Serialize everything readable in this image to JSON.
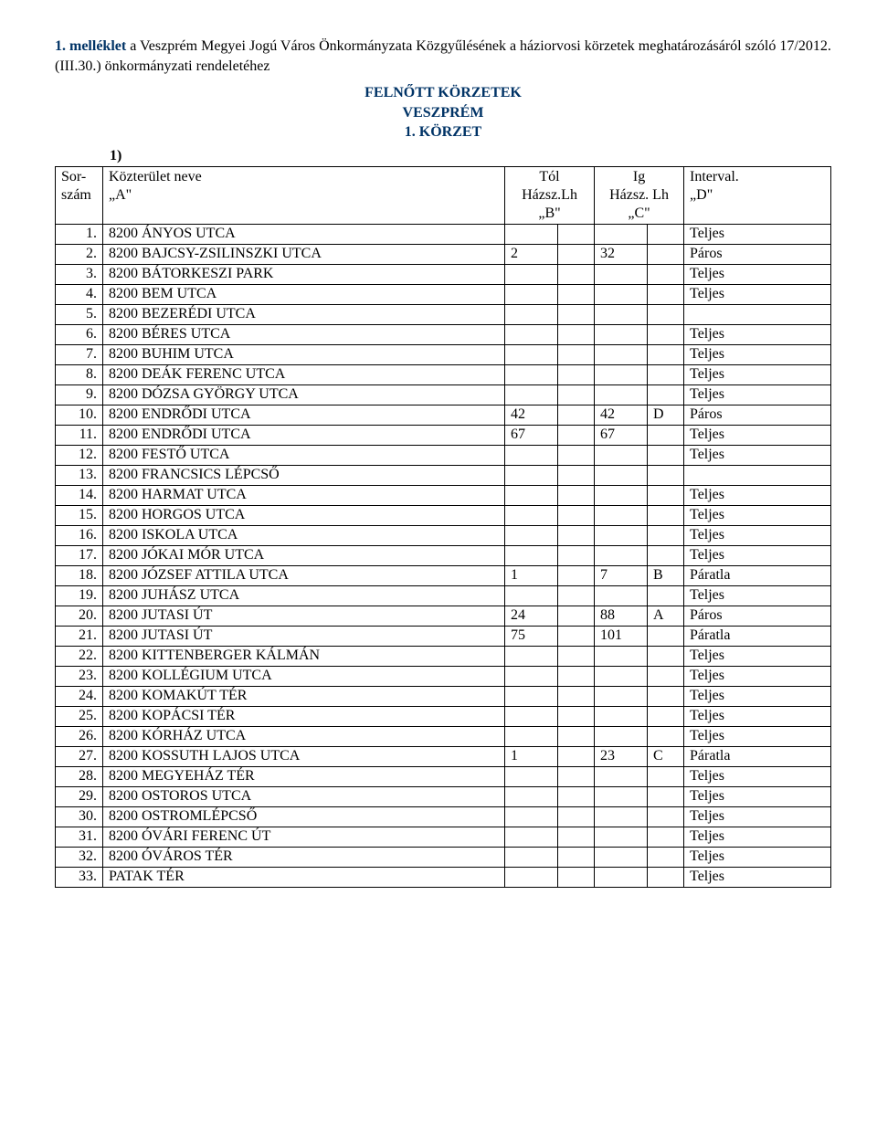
{
  "intro": {
    "lead": "1. melléklet",
    "rest1": " a Veszprém Megyei Jogú Város Önkormányzata Közgyűlésének a háziorvosi körzetek meghatározásáról szóló 17/2012. (III.30.) önkormányzati rendeletéhez"
  },
  "title_lines": [
    "FELNŐTT KÖRZETEK",
    "VESZPRÉM",
    "1. KÖRZET"
  ],
  "list_marker": "1)",
  "headers": {
    "sor": "Sor-\nszám",
    "name": "Közterület neve\n„A\"",
    "tol": "Tól\nHázsz.Lh\n„B\"",
    "ig": "Ig\nHázsz. Lh\n„C\"",
    "interval": "Interval.\n„D\""
  },
  "rows": [
    {
      "n": "1.",
      "name": "8200 ÁNYOS UTCA",
      "b1": "",
      "b2": "",
      "c1": "",
      "c2": "",
      "d": "Teljes"
    },
    {
      "n": "2.",
      "name": "8200 BAJCSY-ZSILINSZKI UTCA",
      "b1": "2",
      "b2": "",
      "c1": "32",
      "c2": "",
      "d": "Páros"
    },
    {
      "n": "3.",
      "name": "8200 BÁTORKESZI PARK",
      "b1": "",
      "b2": "",
      "c1": "",
      "c2": "",
      "d": "Teljes"
    },
    {
      "n": "4.",
      "name": "8200 BEM UTCA",
      "b1": "",
      "b2": "",
      "c1": "",
      "c2": "",
      "d": "Teljes"
    },
    {
      "n": "5.",
      "name": "8200 BEZERÉDI UTCA",
      "b1": "",
      "b2": "",
      "c1": "",
      "c2": "",
      "d": ""
    },
    {
      "n": "6.",
      "name": "8200 BÉRES UTCA",
      "b1": "",
      "b2": "",
      "c1": "",
      "c2": "",
      "d": "Teljes"
    },
    {
      "n": "7.",
      "name": "8200 BUHIM UTCA",
      "b1": "",
      "b2": "",
      "c1": "",
      "c2": "",
      "d": "Teljes"
    },
    {
      "n": "8.",
      "name": "8200 DEÁK FERENC UTCA",
      "b1": "",
      "b2": "",
      "c1": "",
      "c2": "",
      "d": "Teljes"
    },
    {
      "n": "9.",
      "name": "8200 DÓZSA GYÖRGY UTCA",
      "b1": "",
      "b2": "",
      "c1": "",
      "c2": "",
      "d": "Teljes"
    },
    {
      "n": "10.",
      "name": "8200 ENDRŐDI UTCA",
      "b1": "42",
      "b2": "",
      "c1": "42",
      "c2": "D",
      "d": "Páros"
    },
    {
      "n": "11.",
      "name": "8200 ENDRŐDI UTCA",
      "b1": "67",
      "b2": "",
      "c1": "67",
      "c2": "",
      "d": "Teljes"
    },
    {
      "n": "12.",
      "name": "8200 FESTŐ UTCA",
      "b1": "",
      "b2": "",
      "c1": "",
      "c2": "",
      "d": "Teljes"
    },
    {
      "n": "13.",
      "name": "8200 FRANCSICS LÉPCSŐ",
      "b1": "",
      "b2": "",
      "c1": "",
      "c2": "",
      "d": ""
    },
    {
      "n": "14.",
      "name": "8200 HARMAT UTCA",
      "b1": "",
      "b2": "",
      "c1": "",
      "c2": "",
      "d": "Teljes"
    },
    {
      "n": "15.",
      "name": "8200 HORGOS UTCA",
      "b1": "",
      "b2": "",
      "c1": "",
      "c2": "",
      "d": "Teljes"
    },
    {
      "n": "16.",
      "name": "8200 ISKOLA UTCA",
      "b1": "",
      "b2": "",
      "c1": "",
      "c2": "",
      "d": "Teljes"
    },
    {
      "n": "17.",
      "name": "8200 JÓKAI MÓR UTCA",
      "b1": "",
      "b2": "",
      "c1": "",
      "c2": "",
      "d": "Teljes"
    },
    {
      "n": "18.",
      "name": "8200 JÓZSEF ATTILA UTCA",
      "b1": "1",
      "b2": "",
      "c1": "7",
      "c2": "B",
      "d": "Páratla"
    },
    {
      "n": "19.",
      "name": "8200 JUHÁSZ UTCA",
      "b1": "",
      "b2": "",
      "c1": "",
      "c2": "",
      "d": "Teljes"
    },
    {
      "n": "20.",
      "name": "8200 JUTASI ÚT",
      "b1": "24",
      "b2": "",
      "c1": "88",
      "c2": "A",
      "d": "Páros"
    },
    {
      "n": "21.",
      "name": "8200 JUTASI ÚT",
      "b1": "75",
      "b2": "",
      "c1": "101",
      "c2": "",
      "d": "Páratla"
    },
    {
      "n": "22.",
      "name": "8200 KITTENBERGER KÁLMÁN",
      "b1": "",
      "b2": "",
      "c1": "",
      "c2": "",
      "d": "Teljes"
    },
    {
      "n": "23.",
      "name": "8200 KOLLÉGIUM UTCA",
      "b1": "",
      "b2": "",
      "c1": "",
      "c2": "",
      "d": "Teljes"
    },
    {
      "n": "24.",
      "name": "8200 KOMAKÚT TÉR",
      "b1": "",
      "b2": "",
      "c1": "",
      "c2": "",
      "d": "Teljes"
    },
    {
      "n": "25.",
      "name": "8200 KOPÁCSI TÉR",
      "b1": "",
      "b2": "",
      "c1": "",
      "c2": "",
      "d": "Teljes"
    },
    {
      "n": "26.",
      "name": "8200 KÓRHÁZ UTCA",
      "b1": "",
      "b2": "",
      "c1": "",
      "c2": "",
      "d": "Teljes"
    },
    {
      "n": "27.",
      "name": "8200 KOSSUTH LAJOS UTCA",
      "b1": "1",
      "b2": "",
      "c1": "23",
      "c2": "C",
      "d": "Páratla"
    },
    {
      "n": "28.",
      "name": "8200 MEGYEHÁZ TÉR",
      "b1": "",
      "b2": "",
      "c1": "",
      "c2": "",
      "d": "Teljes"
    },
    {
      "n": "29.",
      "name": "8200 OSTOROS UTCA",
      "b1": "",
      "b2": "",
      "c1": "",
      "c2": "",
      "d": "Teljes"
    },
    {
      "n": "30.",
      "name": "8200 OSTROMLÉPCSŐ",
      "b1": "",
      "b2": "",
      "c1": "",
      "c2": "",
      "d": "Teljes"
    },
    {
      "n": "31.",
      "name": "8200 ÓVÁRI FERENC ÚT",
      "b1": "",
      "b2": "",
      "c1": "",
      "c2": "",
      "d": "Teljes"
    },
    {
      "n": "32.",
      "name": "8200 ÓVÁROS TÉR",
      "b1": "",
      "b2": "",
      "c1": "",
      "c2": "",
      "d": "Teljes"
    },
    {
      "n": "33.",
      "name": "PATAK TÉR",
      "b1": "",
      "b2": "",
      "c1": "",
      "c2": "",
      "d": "Teljes"
    }
  ]
}
